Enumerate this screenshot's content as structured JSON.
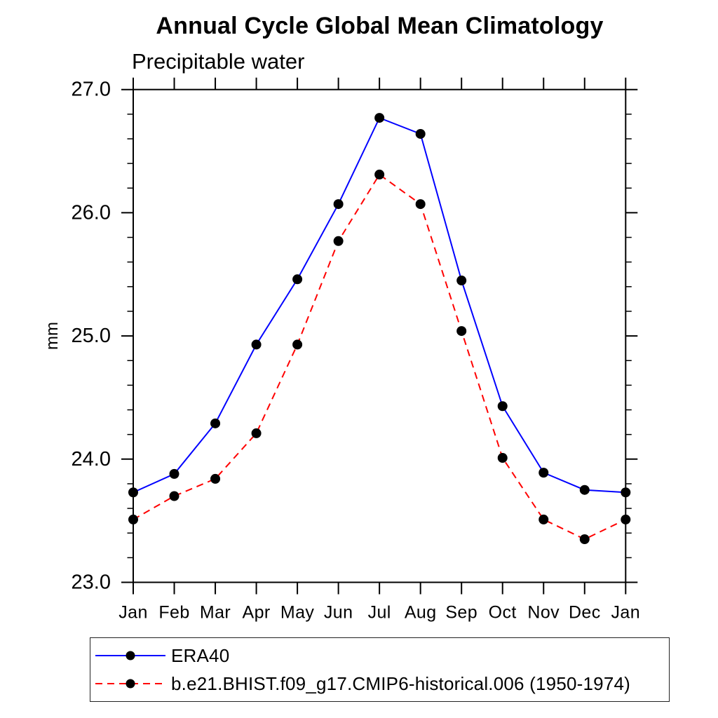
{
  "chart_data": {
    "type": "line",
    "title": "Annual Cycle Global Mean Climatology",
    "subtitle": "Precipitable water",
    "ylabel": "mm",
    "xlabel": "",
    "ylim": [
      23.0,
      27.0
    ],
    "yticks": [
      23.0,
      24.0,
      25.0,
      26.0,
      27.0
    ],
    "ytick_labels": [
      "23.0",
      "24.0",
      "25.0",
      "26.0",
      "27.0"
    ],
    "y_minor_step": 0.2,
    "categories": [
      "Jan",
      "Feb",
      "Mar",
      "Apr",
      "May",
      "Jun",
      "Jul",
      "Aug",
      "Sep",
      "Oct",
      "Nov",
      "Dec",
      "Jan"
    ],
    "grid": false,
    "axis_color": "#000000",
    "background_color": "#ffffff",
    "marker_color": "#000000",
    "legend_position": "bottom-left",
    "series": [
      {
        "name": "ERA40",
        "color": "#0000ff",
        "line_style": "solid",
        "marker": "filled-circle",
        "values": [
          23.73,
          23.88,
          24.29,
          24.93,
          25.46,
          26.07,
          26.77,
          26.64,
          25.45,
          24.43,
          23.89,
          23.75,
          23.73
        ]
      },
      {
        "name": "b.e21.BHIST.f09_g17.CMIP6-historical.006 (1950-1974)",
        "color": "#ff0000",
        "line_style": "dashed",
        "marker": "filled-circle",
        "values": [
          23.51,
          23.7,
          23.84,
          24.21,
          24.93,
          25.77,
          26.31,
          26.07,
          25.04,
          24.01,
          23.51,
          23.35,
          23.51
        ]
      }
    ]
  }
}
